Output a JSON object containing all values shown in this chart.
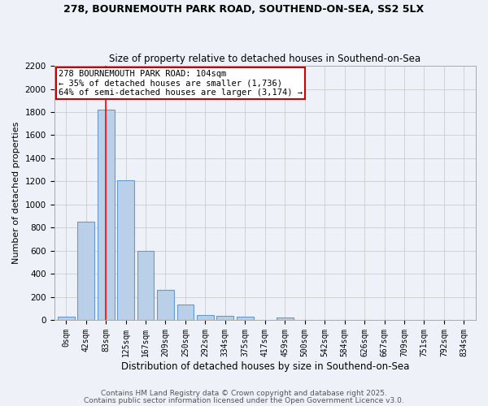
{
  "title1": "278, BOURNEMOUTH PARK ROAD, SOUTHEND-ON-SEA, SS2 5LX",
  "title2": "Size of property relative to detached houses in Southend-on-Sea",
  "xlabel": "Distribution of detached houses by size in Southend-on-Sea",
  "ylabel": "Number of detached properties",
  "categories": [
    "0sqm",
    "42sqm",
    "83sqm",
    "125sqm",
    "167sqm",
    "209sqm",
    "250sqm",
    "292sqm",
    "334sqm",
    "375sqm",
    "417sqm",
    "459sqm",
    "500sqm",
    "542sqm",
    "584sqm",
    "626sqm",
    "667sqm",
    "709sqm",
    "751sqm",
    "792sqm",
    "834sqm"
  ],
  "values": [
    25,
    850,
    1820,
    1210,
    595,
    260,
    135,
    45,
    35,
    25,
    0,
    20,
    0,
    0,
    0,
    0,
    0,
    0,
    0,
    0,
    0
  ],
  "bar_color": "#bad0e8",
  "bar_edge_color": "#6699cc",
  "background_color": "#eef2f8",
  "grid_color": "#cccccc",
  "red_line_x": 2.0,
  "annotation_line1": "278 BOURNEMOUTH PARK ROAD: 104sqm",
  "annotation_line2": "← 35% of detached houses are smaller (1,736)",
  "annotation_line3": "64% of semi-detached houses are larger (3,174) →",
  "annotation_box_color": "#ffffff",
  "annotation_border_color": "#cc0000",
  "ylim": [
    0,
    2200
  ],
  "yticks": [
    0,
    200,
    400,
    600,
    800,
    1000,
    1200,
    1400,
    1600,
    1800,
    2000,
    2200
  ],
  "footer1": "Contains HM Land Registry data © Crown copyright and database right 2025.",
  "footer2": "Contains public sector information licensed under the Open Government Licence v3.0."
}
